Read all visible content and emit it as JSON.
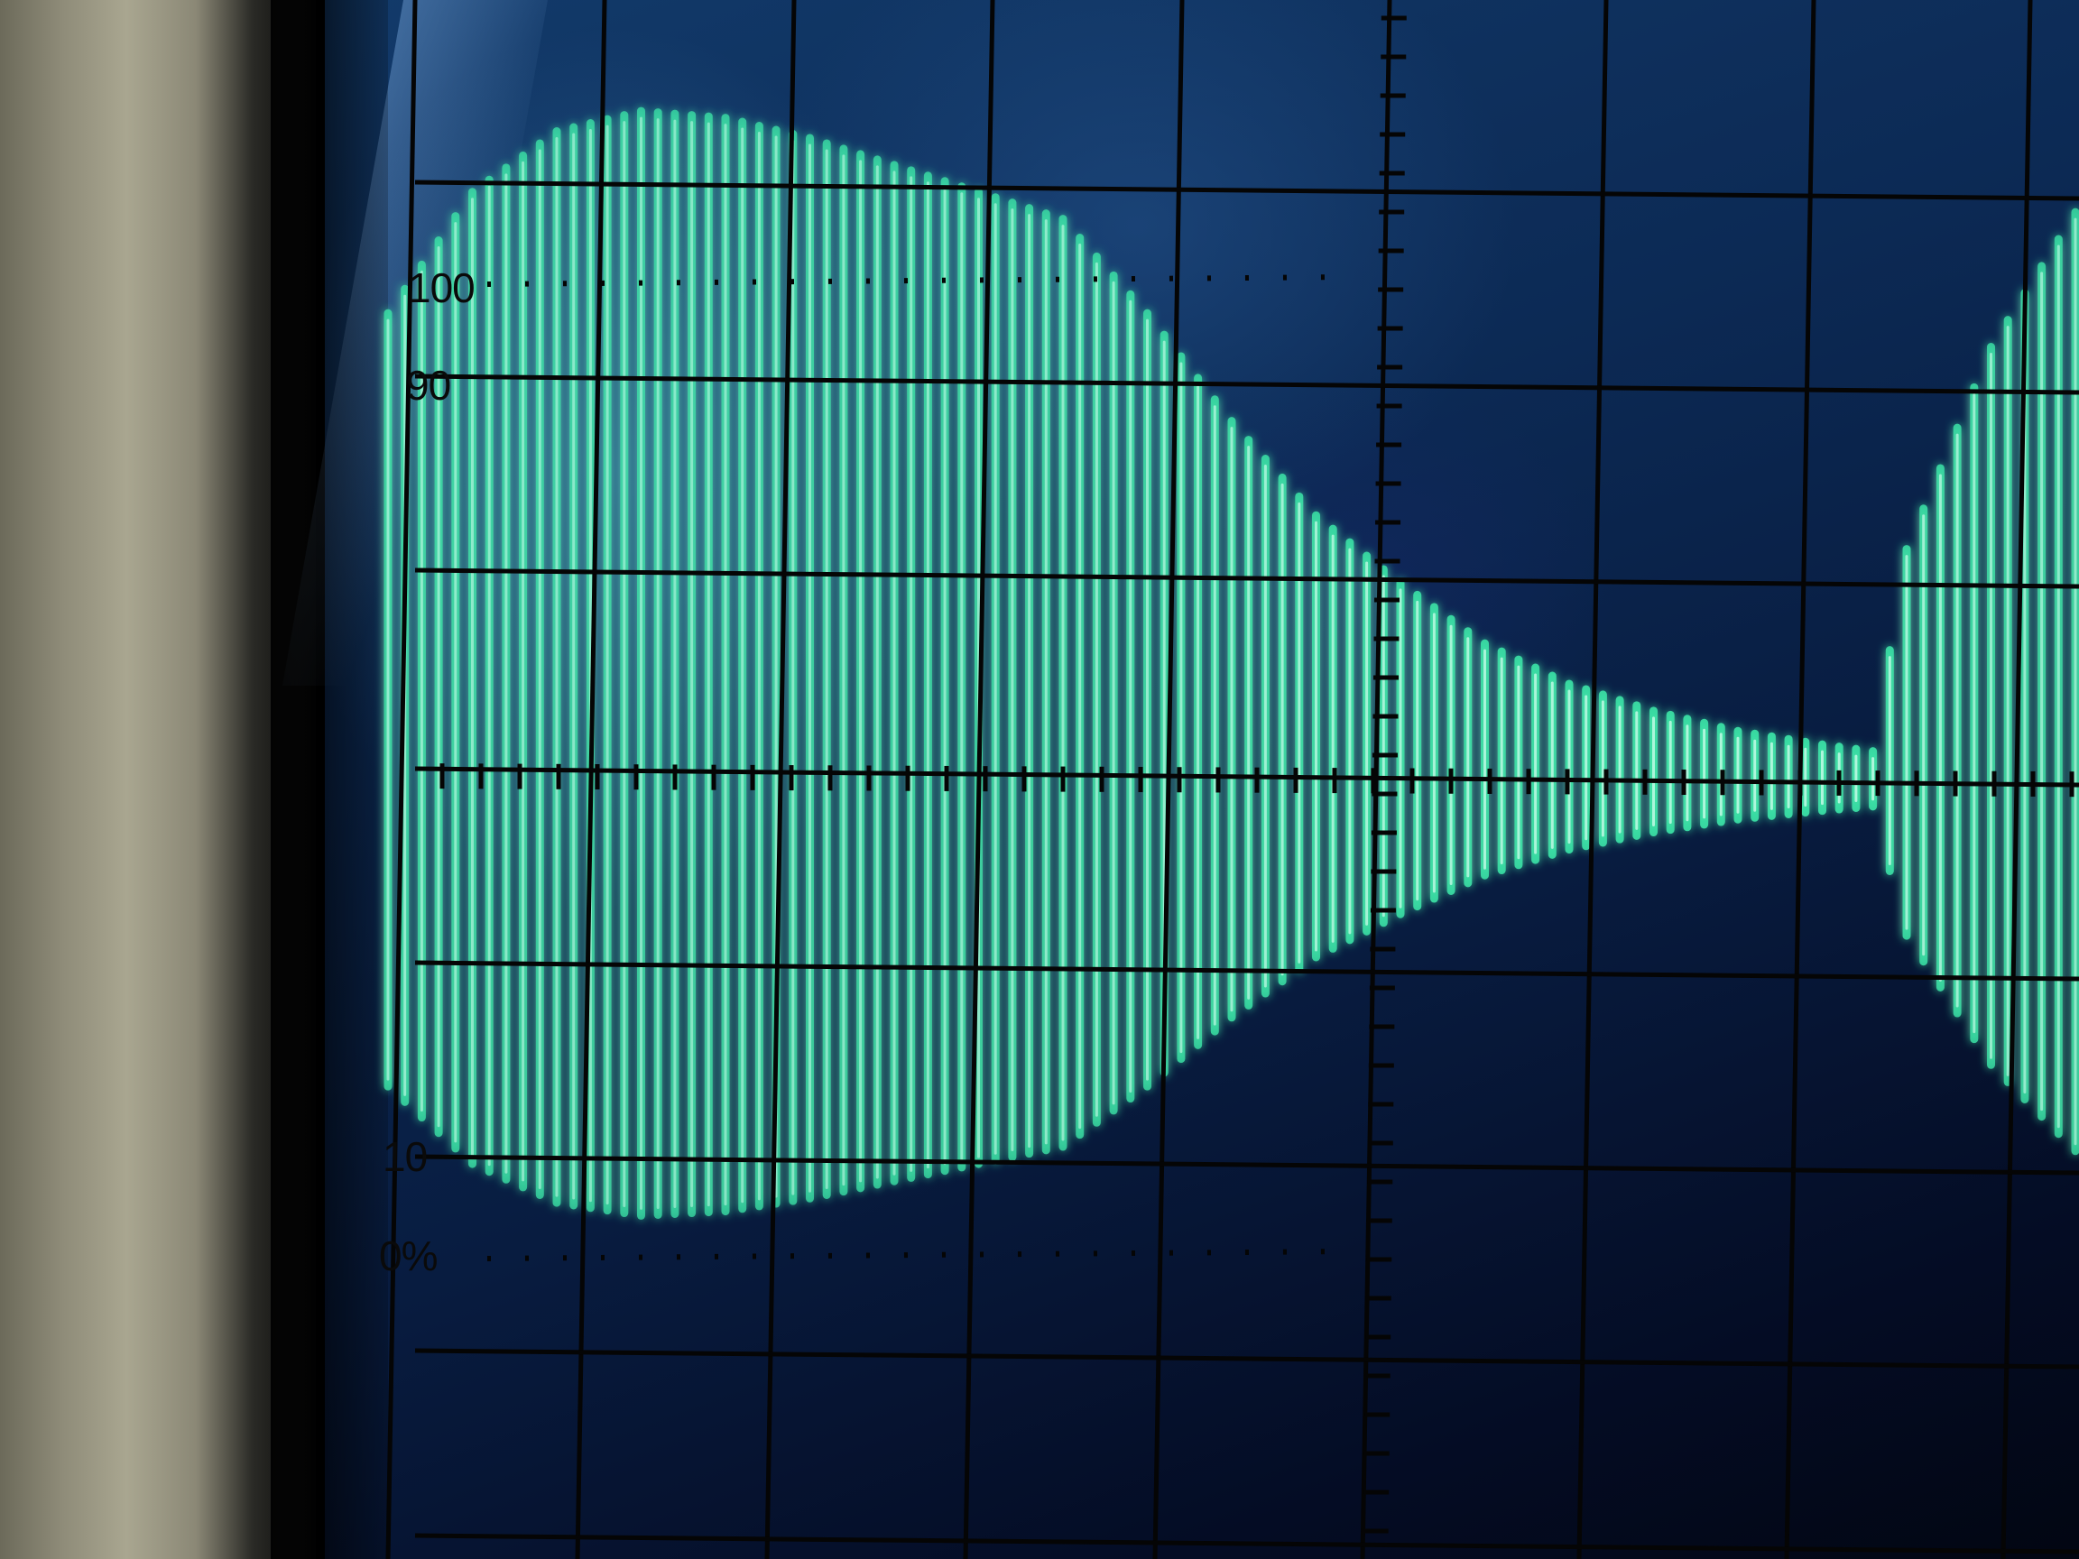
{
  "scene": {
    "description_colors": {
      "bezel": "#a9a690",
      "screen": "#0c2a55",
      "trace": "#3ce6a8",
      "trace_core": "#d8fff0",
      "graticule": "#050505"
    }
  },
  "graticule": {
    "labels": {
      "l100": "100",
      "l90": "90",
      "l10": "10",
      "l0": "0%"
    }
  },
  "trace": {
    "envelope": [
      {
        "t": 0.0,
        "a": 0.7
      },
      {
        "t": 0.05,
        "a": 0.88
      },
      {
        "t": 0.1,
        "a": 0.97
      },
      {
        "t": 0.15,
        "a": 1.0
      },
      {
        "t": 0.2,
        "a": 0.99
      },
      {
        "t": 0.25,
        "a": 0.96
      },
      {
        "t": 0.3,
        "a": 0.92
      },
      {
        "t": 0.35,
        "a": 0.88
      },
      {
        "t": 0.4,
        "a": 0.84
      },
      {
        "t": 0.45,
        "a": 0.7
      },
      {
        "t": 0.5,
        "a": 0.54
      },
      {
        "t": 0.55,
        "a": 0.4
      },
      {
        "t": 0.6,
        "a": 0.3
      },
      {
        "t": 0.65,
        "a": 0.21
      },
      {
        "t": 0.7,
        "a": 0.15
      },
      {
        "t": 0.75,
        "a": 0.11
      },
      {
        "t": 0.8,
        "a": 0.08
      },
      {
        "t": 0.85,
        "a": 0.06
      },
      {
        "t": 0.88,
        "a": 0.05
      },
      {
        "t": 0.9,
        "a": 0.35
      },
      {
        "t": 0.95,
        "a": 0.65
      },
      {
        "t": 1.0,
        "a": 0.85
      }
    ]
  }
}
